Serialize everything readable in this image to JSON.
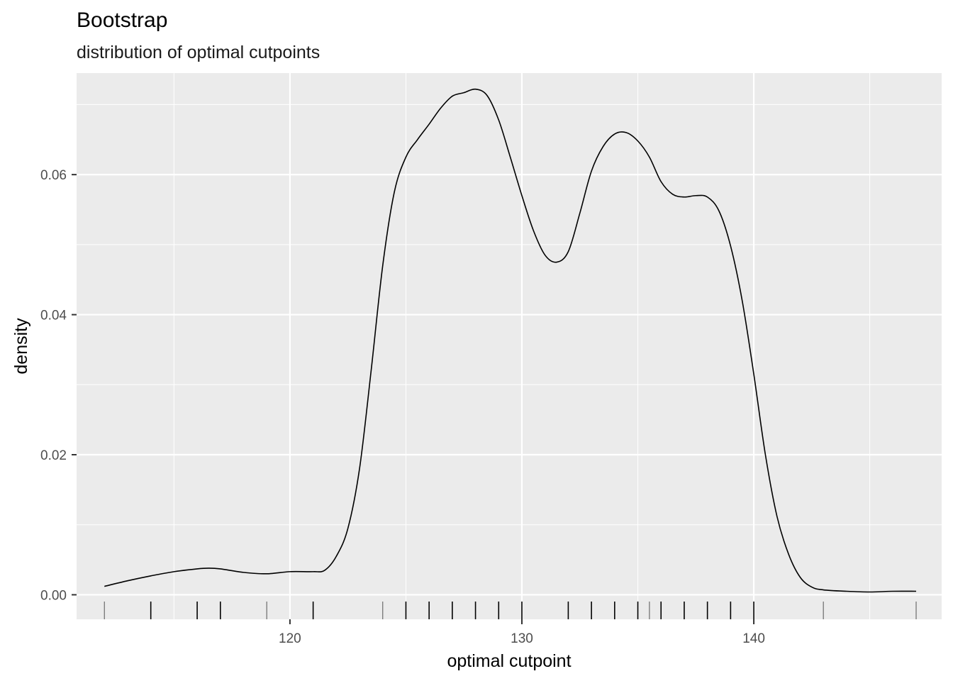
{
  "chart_data": {
    "type": "density",
    "title": "Bootstrap",
    "subtitle": "distribution of optimal cutpoints",
    "xlabel": "optimal cutpoint",
    "ylabel": "density",
    "xlim": [
      110.8,
      148.1
    ],
    "ylim": [
      -0.0035,
      0.0745
    ],
    "x_ticks": [
      120,
      130,
      140
    ],
    "x_minor_ticks": [
      115,
      125,
      135,
      145
    ],
    "y_ticks": [
      0.0,
      0.02,
      0.04,
      0.06
    ],
    "y_tick_labels": [
      "0.00",
      "0.02",
      "0.04",
      "0.06"
    ],
    "y_minor_ticks": [
      0.01,
      0.03,
      0.05,
      0.07
    ],
    "grid": true,
    "panel_background": "#ebebeb",
    "grid_color": "#ffffff",
    "line_color": "#000000",
    "density_curve": {
      "x": [
        112,
        113,
        114,
        115,
        116,
        116.5,
        117,
        118,
        119,
        120,
        121,
        121.5,
        122,
        122.5,
        123,
        123.5,
        124,
        124.5,
        125,
        125.5,
        126,
        126.5,
        127,
        127.5,
        128,
        128.5,
        129,
        129.5,
        130,
        130.5,
        131,
        131.5,
        132,
        132.5,
        133,
        133.5,
        134,
        134.5,
        135,
        135.5,
        136,
        136.5,
        137,
        137.5,
        138,
        138.5,
        139,
        139.5,
        140,
        140.5,
        141,
        141.5,
        142,
        142.5,
        143,
        144,
        145,
        146,
        147
      ],
      "y": [
        0.0012,
        0.002,
        0.0027,
        0.0033,
        0.0037,
        0.0038,
        0.0037,
        0.0032,
        0.003,
        0.0033,
        0.0033,
        0.0035,
        0.0055,
        0.0095,
        0.018,
        0.032,
        0.047,
        0.0575,
        0.0625,
        0.065,
        0.0672,
        0.0695,
        0.0712,
        0.0717,
        0.0722,
        0.0713,
        0.0678,
        0.0625,
        0.057,
        0.052,
        0.0485,
        0.0475,
        0.049,
        0.0545,
        0.0605,
        0.064,
        0.0658,
        0.066,
        0.0648,
        0.0625,
        0.059,
        0.0572,
        0.0568,
        0.057,
        0.0568,
        0.0548,
        0.0498,
        0.042,
        0.0315,
        0.02,
        0.0112,
        0.0058,
        0.0025,
        0.0011,
        0.0007,
        0.0005,
        0.0004,
        0.0005,
        0.0005
      ]
    },
    "rug_x": [
      112,
      114,
      116,
      117,
      119,
      121,
      124,
      125,
      126,
      127,
      128,
      129,
      130,
      132,
      133,
      134,
      135,
      135.5,
      136,
      137,
      138,
      139,
      140,
      143,
      147
    ],
    "rug_light": [
      112,
      119,
      124,
      135.5,
      143,
      147
    ]
  }
}
